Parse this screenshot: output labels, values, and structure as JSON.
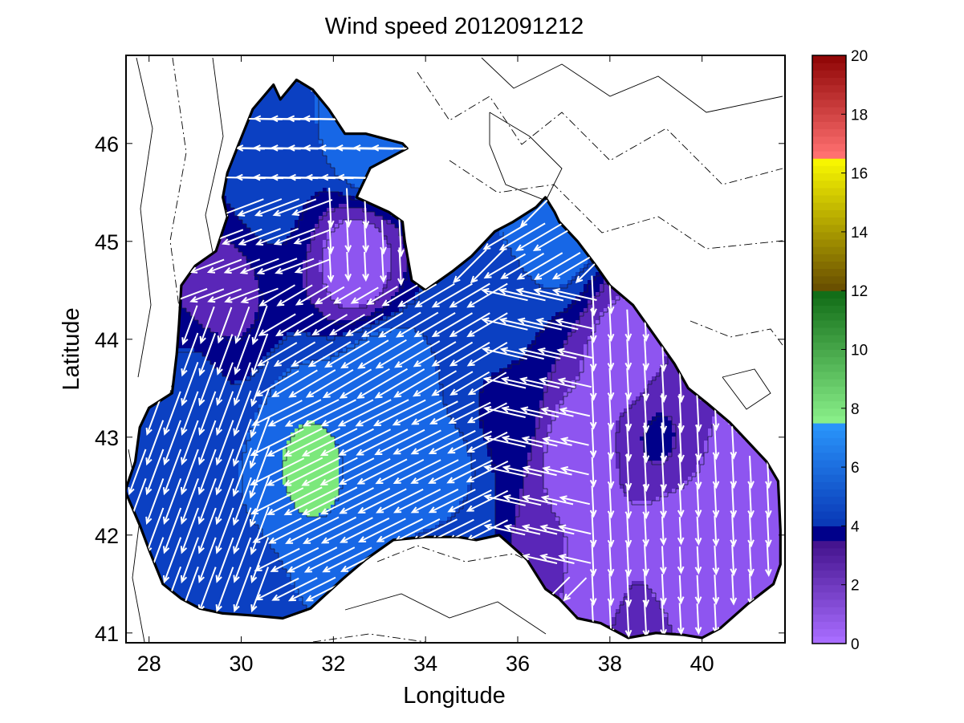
{
  "chart_data": {
    "type": "heatmap",
    "subtype": "filled-contour map with wind vector arrows over the Black Sea",
    "title": "Wind speed 2012091212",
    "xlabel": "Longitude",
    "ylabel": "Latitude",
    "xlim": [
      27.5,
      41.8
    ],
    "ylim": [
      40.9,
      46.9
    ],
    "xticks": [
      28,
      30,
      32,
      34,
      36,
      38,
      40
    ],
    "yticks": [
      41,
      42,
      43,
      44,
      45,
      46
    ],
    "colorbar": {
      "min": 0,
      "max": 20,
      "ticks": [
        0,
        2,
        4,
        6,
        8,
        10,
        12,
        14,
        16,
        18,
        20
      ],
      "segments": [
        {
          "from": 0,
          "to": 3.5,
          "bottom": "#a86cff",
          "top": "#3d0d86"
        },
        {
          "from": 3.5,
          "to": 4,
          "bottom": "#00008a",
          "top": "#00008a"
        },
        {
          "from": 4,
          "to": 7.5,
          "bottom": "#0a3ab8",
          "top": "#2b9bff"
        },
        {
          "from": 7.5,
          "to": 12,
          "bottom": "#88ee88",
          "top": "#0b6611"
        },
        {
          "from": 12,
          "to": 16.5,
          "bottom": "#6a5000",
          "top": "#ffff00"
        },
        {
          "from": 16.5,
          "to": 20,
          "bottom": "#ff7070",
          "top": "#8a0000"
        }
      ]
    },
    "contour_levels": [
      {
        "value": 3,
        "color": "#5a26b8"
      },
      {
        "value": 4,
        "color": "#00008a"
      },
      {
        "value": 5,
        "color": "#0b40c2"
      },
      {
        "value": 6,
        "color": "#1767e6"
      },
      {
        "value": 8,
        "color": "#7ce87c"
      }
    ],
    "speed_centers": [
      {
        "lon": 31.5,
        "lat": 42.7,
        "speed": 8.4
      },
      {
        "lon": 33.0,
        "lat": 43.5,
        "speed": 7.8
      },
      {
        "lon": 32.8,
        "lat": 46.0,
        "speed": 7.5
      },
      {
        "lon": 36.8,
        "lat": 45.2,
        "speed": 7.2
      },
      {
        "lon": 32.5,
        "lat": 44.8,
        "speed": 1.8
      },
      {
        "lon": 29.5,
        "lat": 44.5,
        "speed": 3.2
      },
      {
        "lon": 39.5,
        "lat": 41.8,
        "speed": 1.5
      },
      {
        "lon": 37.2,
        "lat": 42.8,
        "speed": 1.8
      },
      {
        "lon": 38.3,
        "lat": 43.8,
        "speed": 2.2
      },
      {
        "lon": 39.0,
        "lat": 43.0,
        "speed": 4.2
      },
      {
        "lon": 36.3,
        "lat": 41.8,
        "speed": 3.2
      },
      {
        "lon": 28.3,
        "lat": 42.3,
        "speed": 5.6
      },
      {
        "lon": 30.0,
        "lat": 41.4,
        "speed": 5.4
      },
      {
        "lon": 35.2,
        "lat": 42.0,
        "speed": 5.2
      },
      {
        "lon": 35.5,
        "lat": 44.2,
        "speed": 5.5
      },
      {
        "lon": 35.8,
        "lat": 43.2,
        "speed": 4.6
      },
      {
        "lon": 30.5,
        "lat": 45.6,
        "speed": 5.6
      },
      {
        "lon": 29.8,
        "lat": 46.2,
        "speed": 5.0
      },
      {
        "lon": 40.8,
        "lat": 42.6,
        "speed": 2.6
      },
      {
        "lon": 37.8,
        "lat": 41.5,
        "speed": 2.4
      },
      {
        "lon": 34.5,
        "lat": 42.6,
        "speed": 6.6
      },
      {
        "lon": 29.0,
        "lat": 43.6,
        "speed": 5.2
      },
      {
        "lon": 38.6,
        "lat": 41.1,
        "speed": 3.6
      }
    ],
    "wind_regions": [
      {
        "lon": [
          27.5,
          30.5
        ],
        "lat": [
          40.9,
          44.3
        ],
        "u": -0.35,
        "v": -0.95
      },
      {
        "lon": [
          30.5,
          35.5
        ],
        "lat": [
          41.3,
          43.3
        ],
        "u": -0.9,
        "v": -0.45
      },
      {
        "lon": [
          30.5,
          35.5
        ],
        "lat": [
          43.3,
          44.5
        ],
        "u": -0.85,
        "v": -0.5
      },
      {
        "lon": [
          35.5,
          37.5
        ],
        "lat": [
          41.5,
          44.5
        ],
        "u": -0.97,
        "v": 0.22
      },
      {
        "lon": [
          37.5,
          41.8
        ],
        "lat": [
          40.9,
          44.6
        ],
        "u": 0.05,
        "v": -1
      },
      {
        "lon": [
          35.5,
          37.5
        ],
        "lat": [
          44.3,
          45.3
        ],
        "u": -0.85,
        "v": -0.5
      },
      {
        "lon": [
          31.8,
          33.8
        ],
        "lat": [
          44.3,
          45.4
        ],
        "u": 0.05,
        "v": -1
      },
      {
        "lon": [
          27.5,
          31.8
        ],
        "lat": [
          44.3,
          45.4
        ],
        "u": -0.93,
        "v": -0.35
      },
      {
        "lon": [
          27.5,
          34.5
        ],
        "lat": [
          45.4,
          46.9
        ],
        "u": -1,
        "v": 0.02
      }
    ],
    "coastline_lonlat": [
      [
        27.48,
        42.45
      ],
      [
        27.7,
        42.75
      ],
      [
        27.8,
        43.1
      ],
      [
        28.0,
        43.3
      ],
      [
        28.5,
        43.45
      ],
      [
        28.6,
        43.85
      ],
      [
        28.65,
        44.15
      ],
      [
        28.7,
        44.55
      ],
      [
        29.0,
        44.75
      ],
      [
        29.45,
        44.9
      ],
      [
        29.7,
        45.25
      ],
      [
        29.6,
        45.45
      ],
      [
        29.7,
        45.7
      ],
      [
        29.95,
        46.0
      ],
      [
        30.25,
        46.35
      ],
      [
        30.7,
        46.6
      ],
      [
        30.85,
        46.45
      ],
      [
        31.2,
        46.65
      ],
      [
        31.55,
        46.55
      ],
      [
        31.9,
        46.35
      ],
      [
        32.25,
        46.1
      ],
      [
        32.7,
        46.1
      ],
      [
        33.1,
        46.05
      ],
      [
        33.5,
        46.0
      ],
      [
        33.6,
        45.95
      ],
      [
        33.2,
        45.85
      ],
      [
        32.8,
        45.75
      ],
      [
        32.5,
        45.45
      ],
      [
        33.2,
        45.3
      ],
      [
        33.5,
        45.2
      ],
      [
        33.55,
        45.0
      ],
      [
        33.7,
        44.6
      ],
      [
        34.0,
        44.5
      ],
      [
        34.6,
        44.7
      ],
      [
        35.0,
        44.85
      ],
      [
        35.5,
        45.1
      ],
      [
        35.9,
        45.2
      ],
      [
        36.4,
        45.35
      ],
      [
        36.6,
        45.45
      ],
      [
        36.8,
        45.3
      ],
      [
        36.9,
        45.2
      ],
      [
        37.3,
        45.0
      ],
      [
        37.7,
        44.75
      ],
      [
        38.0,
        44.55
      ],
      [
        38.5,
        44.35
      ],
      [
        38.95,
        44.05
      ],
      [
        39.4,
        43.75
      ],
      [
        39.7,
        43.5
      ],
      [
        40.1,
        43.35
      ],
      [
        40.6,
        43.15
      ],
      [
        41.0,
        42.95
      ],
      [
        41.4,
        42.75
      ],
      [
        41.65,
        42.55
      ],
      [
        41.7,
        42.05
      ],
      [
        41.7,
        41.7
      ],
      [
        41.55,
        41.5
      ],
      [
        41.0,
        41.3
      ],
      [
        40.4,
        41.05
      ],
      [
        40.0,
        40.95
      ],
      [
        39.6,
        40.98
      ],
      [
        39.0,
        41.0
      ],
      [
        38.4,
        40.95
      ],
      [
        37.8,
        41.1
      ],
      [
        37.3,
        41.15
      ],
      [
        36.9,
        41.35
      ],
      [
        36.6,
        41.45
      ],
      [
        36.2,
        41.75
      ],
      [
        35.6,
        42.0
      ],
      [
        35.1,
        41.95
      ],
      [
        34.7,
        41.98
      ],
      [
        34.0,
        41.98
      ],
      [
        33.3,
        41.95
      ],
      [
        32.7,
        41.75
      ],
      [
        32.2,
        41.55
      ],
      [
        31.5,
        41.25
      ],
      [
        30.9,
        41.15
      ],
      [
        30.2,
        41.18
      ],
      [
        29.6,
        41.2
      ],
      [
        29.1,
        41.25
      ],
      [
        28.7,
        41.35
      ],
      [
        28.3,
        41.5
      ],
      [
        28.0,
        41.85
      ],
      [
        27.8,
        42.1
      ],
      [
        27.48,
        42.45
      ]
    ]
  }
}
